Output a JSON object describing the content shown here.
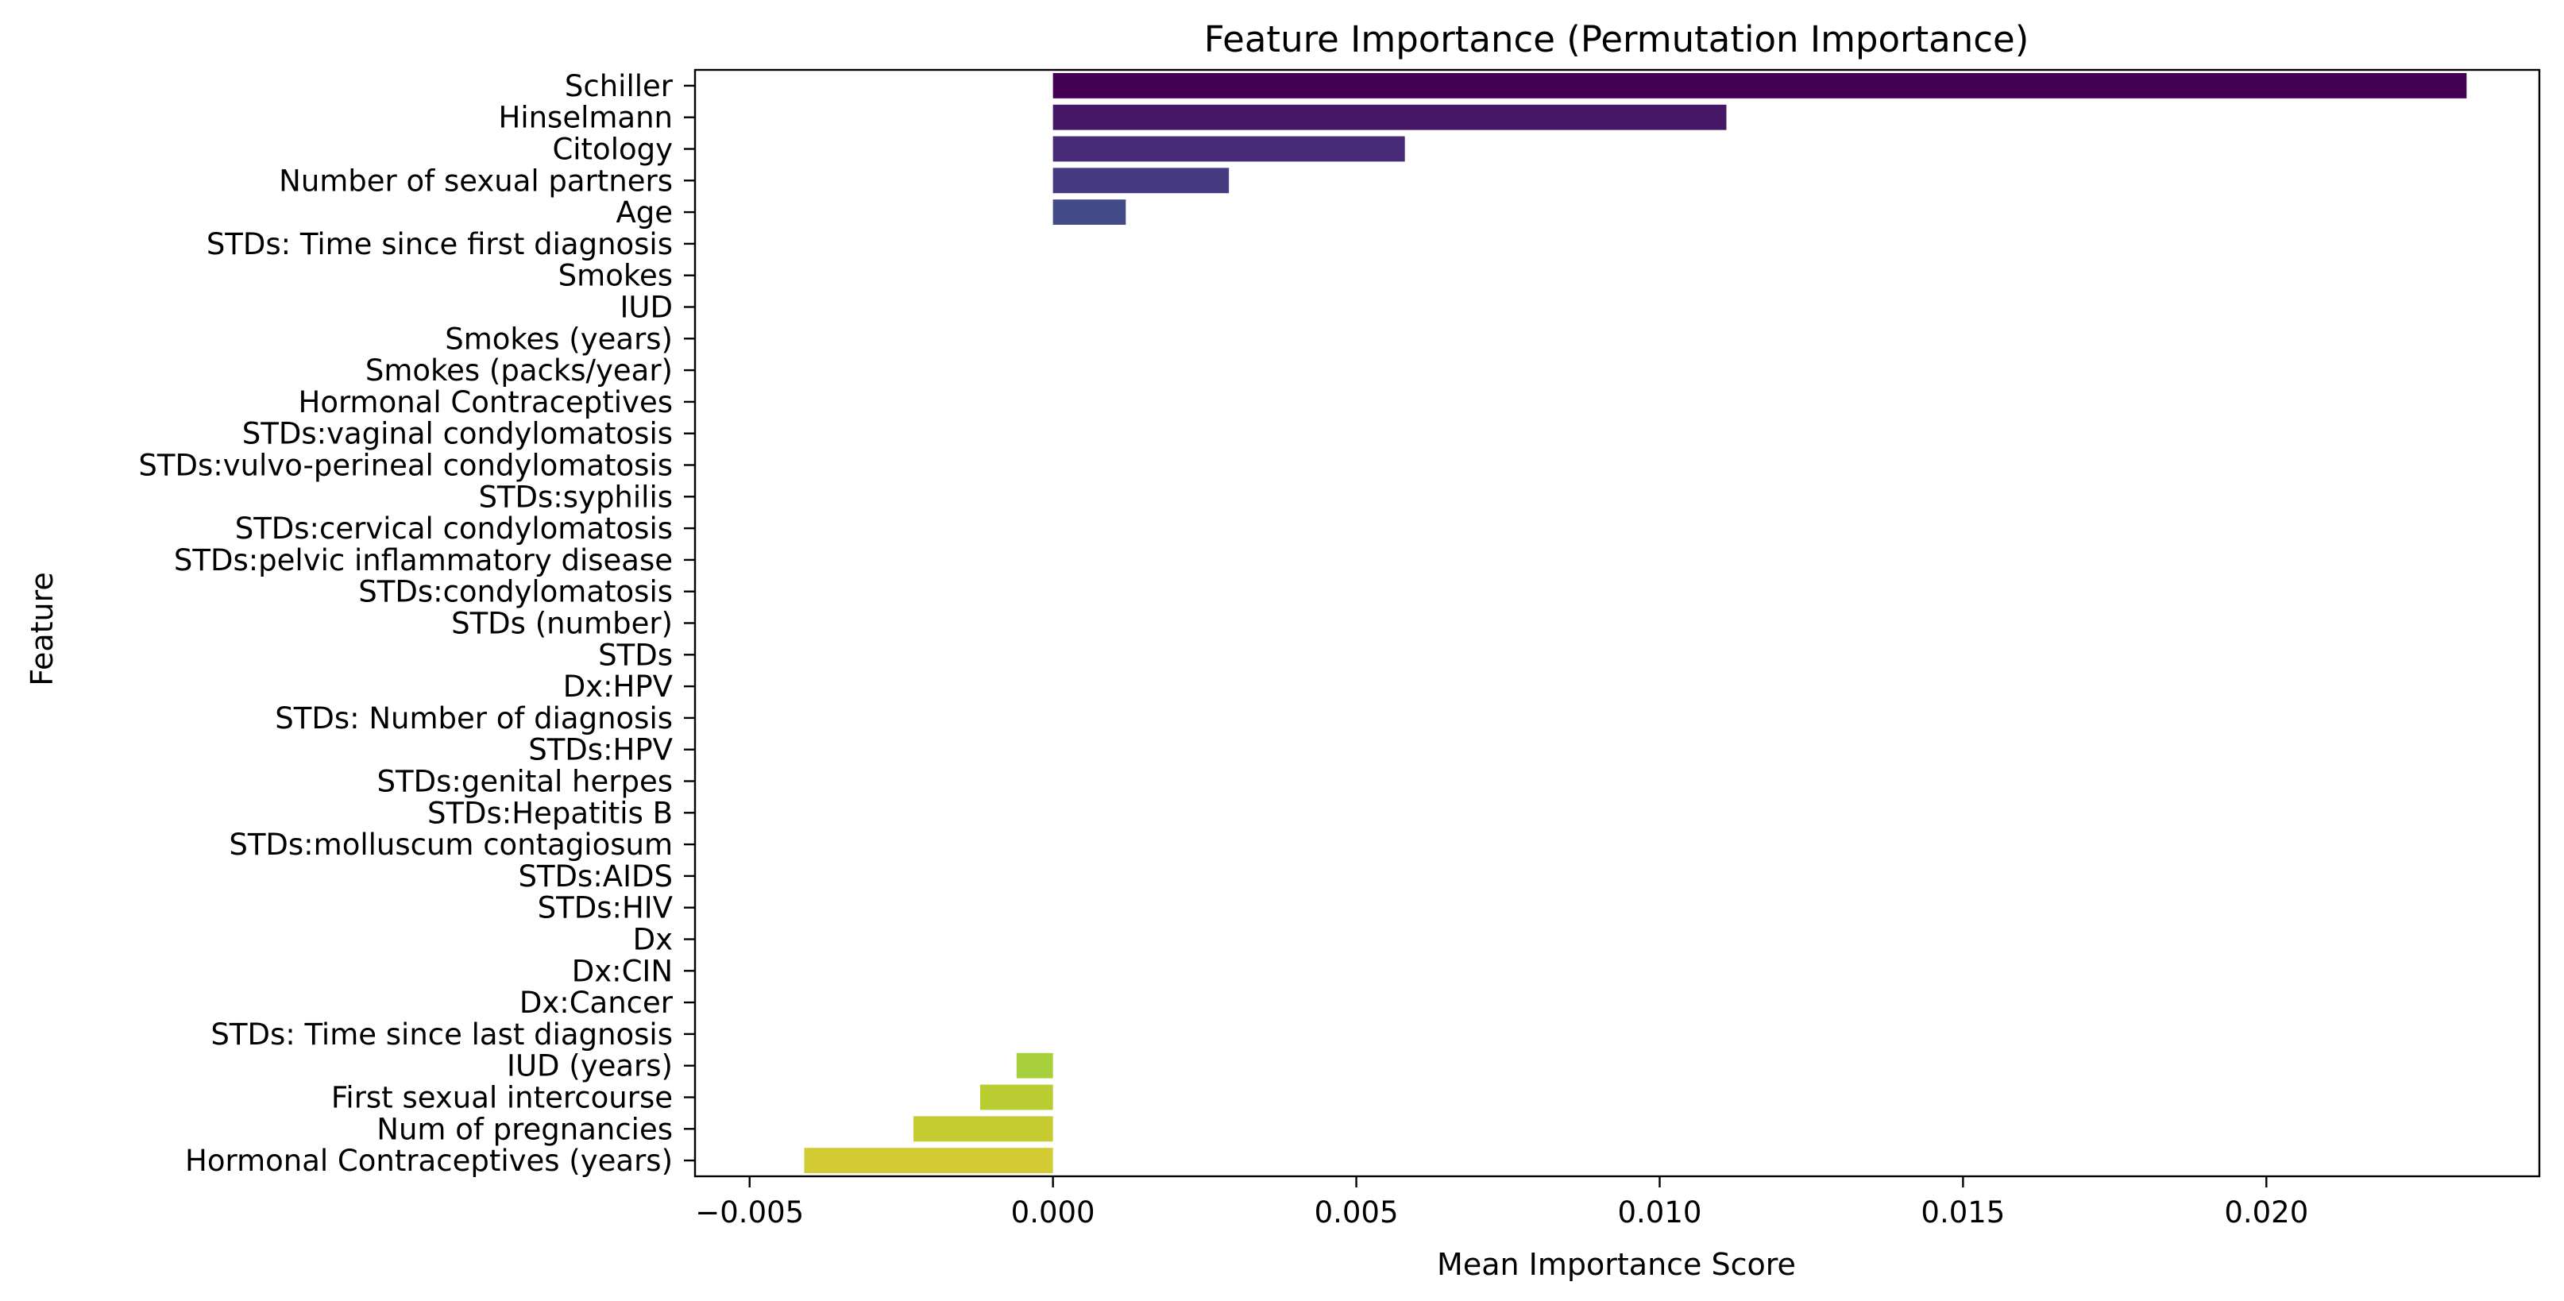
{
  "chart_data": {
    "type": "bar",
    "orientation": "horizontal",
    "title": "Feature Importance (Permutation Importance)",
    "xlabel": "Mean Importance Score",
    "ylabel": "Feature",
    "xlim": [
      -0.0059,
      0.0245
    ],
    "xticks": [
      -0.005,
      0.0,
      0.005,
      0.01,
      0.015,
      0.02
    ],
    "xtick_labels": [
      "−0.005",
      "0.000",
      "0.005",
      "0.010",
      "0.015",
      "0.020"
    ],
    "grid": false,
    "legend": "none",
    "colormap": "viridis (dark purple at top to yellow at bottom)",
    "categories": [
      "Schiller",
      "Hinselmann",
      "Citology",
      "Number of sexual partners",
      "Age",
      "STDs: Time since first diagnosis",
      "Smokes",
      "IUD",
      "Smokes (years)",
      "Smokes (packs/year)",
      "Hormonal Contraceptives",
      "STDs:vaginal condylomatosis",
      "STDs:vulvo-perineal condylomatosis",
      "STDs:syphilis",
      "STDs:cervical condylomatosis",
      "STDs:pelvic inflammatory disease",
      "STDs:condylomatosis",
      "STDs (number)",
      "STDs",
      "Dx:HPV",
      "STDs: Number of diagnosis",
      "STDs:HPV",
      "STDs:genital herpes",
      "STDs:Hepatitis B",
      "STDs:molluscum contagiosum",
      "STDs:AIDS",
      "STDs:HIV",
      "Dx",
      "Dx:CIN",
      "Dx:Cancer",
      "STDs: Time since last diagnosis",
      "IUD (years)",
      "First sexual intercourse",
      "Num of pregnancies",
      "Hormonal Contraceptives (years)"
    ],
    "values": [
      0.0233,
      0.0111,
      0.0058,
      0.0029,
      0.0012,
      0,
      0,
      0,
      0,
      0,
      0,
      0,
      0,
      0,
      0,
      0,
      0,
      0,
      0,
      0,
      0,
      0,
      0,
      0,
      0,
      0,
      0,
      0,
      0,
      0,
      0,
      -0.0006,
      -0.0012,
      -0.0023,
      -0.0041
    ],
    "colors": [
      "#440154",
      "#461766",
      "#472a75",
      "#453a7f",
      "#424a87",
      "#3d5a8b",
      "#37688d",
      "#32748e",
      "#2e818e",
      "#2a8d8d",
      "#26998b",
      "#23a488",
      "#25af83",
      "#2fb97c",
      "#42c172",
      "#56c867",
      "#6ece59",
      "#86d34c",
      "#9ad640",
      "#add838",
      "#b8d733",
      "#c1d431",
      "#c8d22f",
      "#cdd12f",
      "#ced12f",
      "#d0d030",
      "#d1d030",
      "#d1cf30",
      "#d2cf30",
      "#d3ce30",
      "#d3ce30",
      "#a7cf3b",
      "#b9cd33",
      "#c6cb32",
      "#d2cb33"
    ]
  }
}
